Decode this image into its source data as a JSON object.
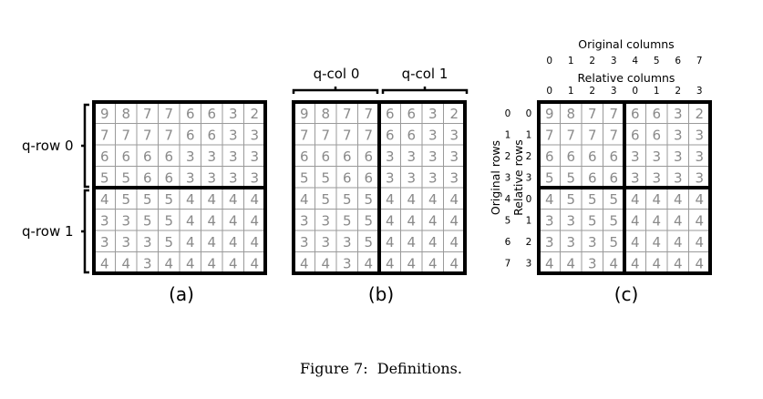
{
  "grid": [
    [
      9,
      8,
      7,
      7,
      6,
      6,
      3,
      2
    ],
    [
      7,
      7,
      7,
      7,
      6,
      6,
      3,
      3
    ],
    [
      6,
      6,
      6,
      6,
      3,
      3,
      3,
      3
    ],
    [
      5,
      5,
      6,
      6,
      3,
      3,
      3,
      3
    ],
    [
      4,
      5,
      5,
      5,
      4,
      4,
      4,
      4
    ],
    [
      3,
      3,
      5,
      5,
      4,
      4,
      4,
      4
    ],
    [
      3,
      3,
      3,
      5,
      4,
      4,
      4,
      4
    ],
    [
      4,
      4,
      3,
      4,
      4,
      4,
      4,
      4
    ]
  ],
  "panel_a": {
    "label": "(a)",
    "row_groups": [
      "q-row 0",
      "q-row 1"
    ]
  },
  "panel_b": {
    "label": "(b)",
    "col_groups": [
      "q-col 0",
      "q-col 1"
    ]
  },
  "panel_c": {
    "label": "(c)",
    "original_columns_title": "Original columns",
    "original_columns": [
      "0",
      "1",
      "2",
      "3",
      "4",
      "5",
      "6",
      "7"
    ],
    "relative_columns_title": "Relative columns",
    "relative_columns": [
      "0",
      "1",
      "2",
      "3",
      "0",
      "1",
      "2",
      "3"
    ],
    "original_rows_title": "Original rows",
    "original_rows": [
      "0",
      "1",
      "2",
      "3",
      "4",
      "5",
      "6",
      "7"
    ],
    "relative_rows_title": "Relative rows",
    "relative_rows": [
      "0",
      "1",
      "2",
      "3",
      "0",
      "1",
      "2",
      "3"
    ]
  },
  "caption": "Figure 7:  Definitions."
}
